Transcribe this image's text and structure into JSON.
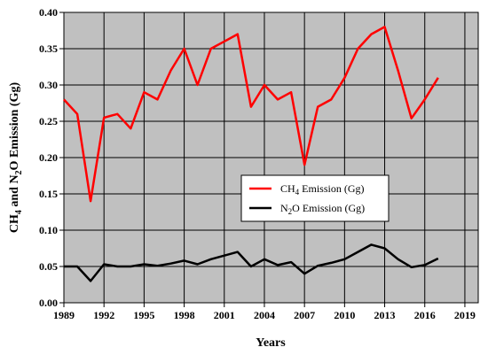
{
  "chart_data": {
    "type": "line",
    "xlabel": "Years",
    "ylabel_parts": [
      "CH",
      "4",
      " and N",
      "2",
      "O Emission (Gg)"
    ],
    "xlim": [
      1989,
      2020
    ],
    "ylim": [
      0,
      0.4
    ],
    "xticks": [
      1989,
      1992,
      1995,
      1998,
      2001,
      2004,
      2007,
      2010,
      2013,
      2016,
      2019
    ],
    "xtick_labels": [
      "1989",
      "1992",
      "1995",
      "1998",
      "2001",
      "2004",
      "2007",
      "2010",
      "2013",
      "2016",
      "2019"
    ],
    "yticks": [
      0,
      0.05,
      0.1,
      0.15,
      0.2,
      0.25,
      0.3,
      0.35,
      0.4
    ],
    "ytick_labels": [
      "0.00",
      "0.05",
      "0.10",
      "0.15",
      "0.20",
      "0.25",
      "0.30",
      "0.35",
      "0.40"
    ],
    "grid": true,
    "plot_background": "#c0c0c0",
    "legend_position": "center-right",
    "x": [
      1989,
      1990,
      1991,
      1992,
      1993,
      1994,
      1995,
      1996,
      1997,
      1998,
      1999,
      2000,
      2001,
      2002,
      2003,
      2004,
      2005,
      2006,
      2007,
      2008,
      2009,
      2010,
      2011,
      2012,
      2013,
      2014,
      2015,
      2016,
      2017
    ],
    "series": [
      {
        "name": "CH4 Emission (Gg)",
        "legend_parts": [
          "CH",
          "4",
          " Emission (Gg)"
        ],
        "color": "#ff0000",
        "values": [
          0.28,
          0.26,
          0.14,
          0.255,
          0.26,
          0.24,
          0.29,
          0.28,
          0.32,
          0.35,
          0.3,
          0.35,
          0.36,
          0.37,
          0.27,
          0.3,
          0.28,
          0.29,
          0.19,
          0.27,
          0.28,
          0.31,
          0.35,
          0.37,
          0.38,
          0.32,
          0.254,
          0.28,
          0.31
        ]
      },
      {
        "name": "N2O Emission (Gg)",
        "legend_parts": [
          "N",
          "2",
          "O Emission (Gg)"
        ],
        "color": "#000000",
        "values": [
          0.05,
          0.05,
          0.03,
          0.053,
          0.05,
          0.05,
          0.053,
          0.051,
          0.054,
          0.058,
          0.053,
          0.06,
          0.065,
          0.07,
          0.05,
          0.06,
          0.052,
          0.056,
          0.04,
          0.051,
          0.055,
          0.06,
          0.07,
          0.08,
          0.075,
          0.06,
          0.049,
          0.052,
          0.061
        ]
      }
    ]
  }
}
